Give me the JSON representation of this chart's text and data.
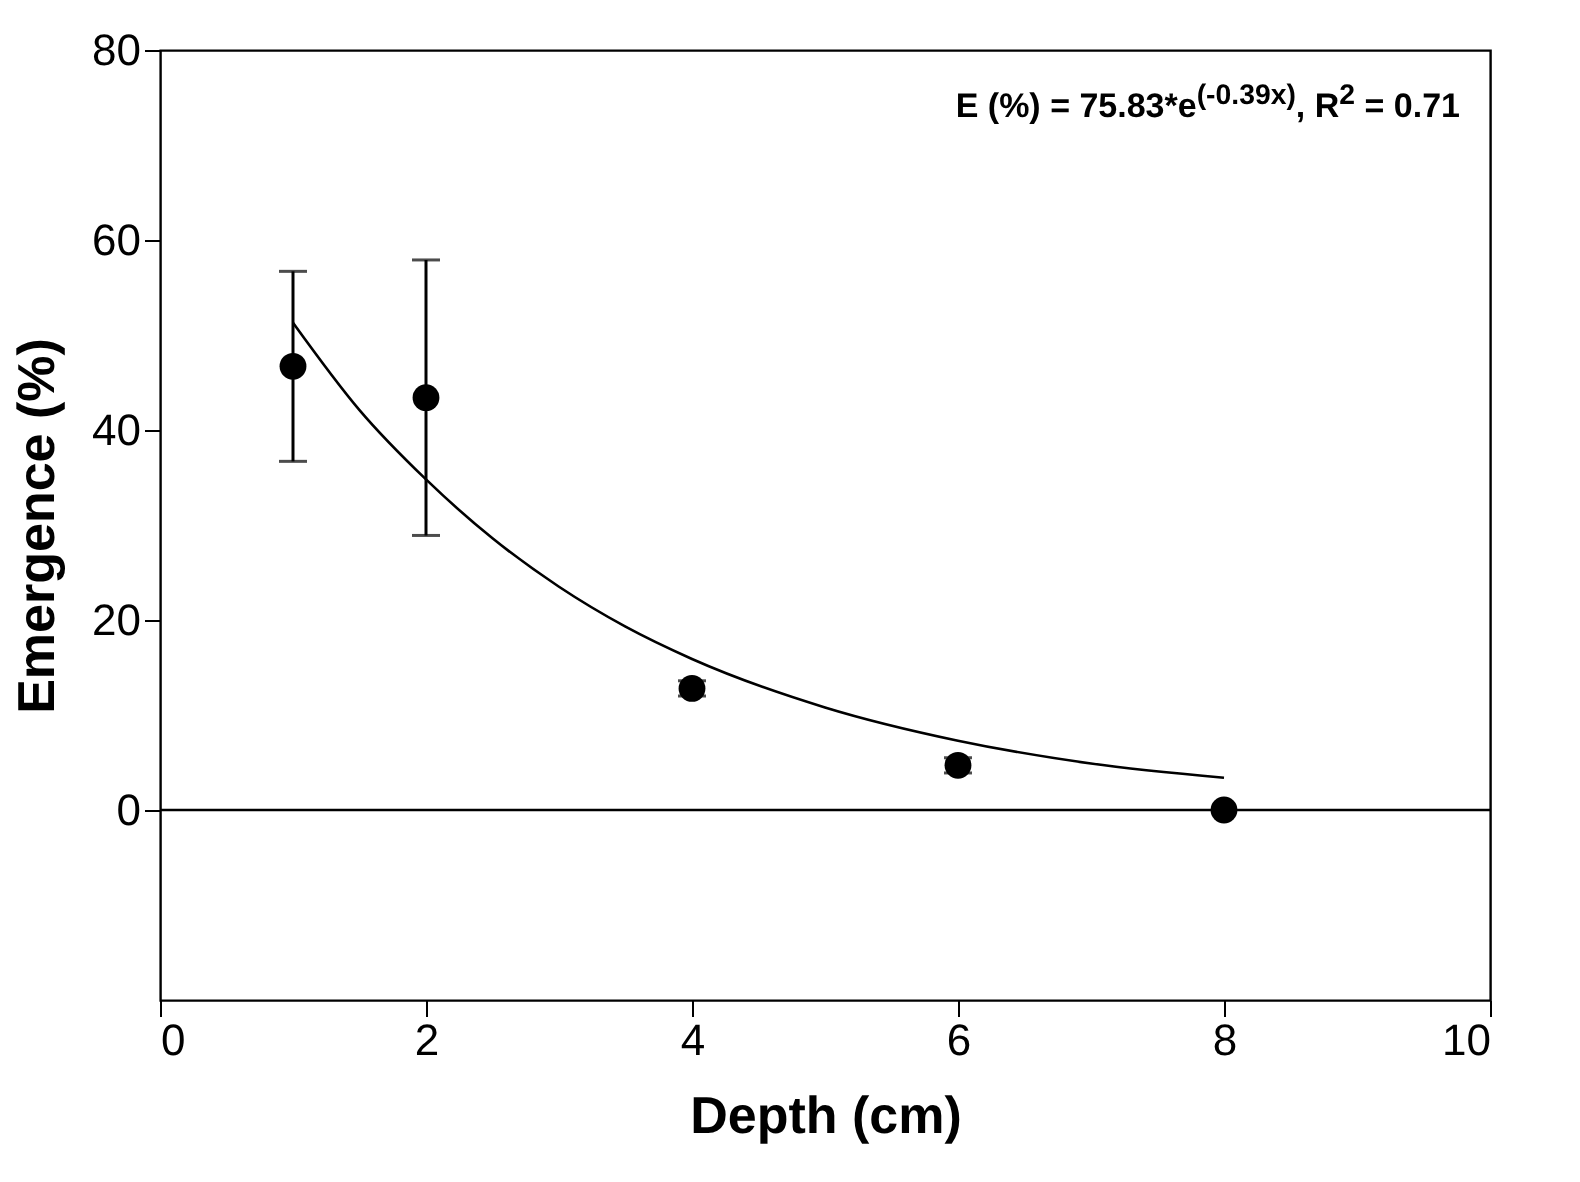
{
  "chart_data": {
    "type": "scatter",
    "xlabel": "Depth (cm)",
    "ylabel": "Emergence (%)",
    "annotations": [
      "E (%) = 75.83*e$^{(-0.39x)}$, R$^{2}$ = 0.71"
    ],
    "xlim": [
      0,
      10
    ],
    "xticks": [
      0,
      2,
      4,
      6,
      8,
      10
    ],
    "ylim": [
      -20,
      80
    ],
    "yticks": [
      0,
      20,
      40,
      60,
      80
    ],
    "grid": false,
    "ref_lines": [
      {
        "axis": "y",
        "value": 0,
        "color": "#000000"
      }
    ],
    "series": [
      {
        "color": "#000000",
        "marker": "circle",
        "x": [
          1,
          2,
          4,
          6,
          8
        ],
        "values": [
          46.7,
          43.4,
          12.8,
          4.7,
          0
        ],
        "errors": [
          10,
          14.5,
          0.8,
          0.8,
          null
        ]
      },
      {
        "type": "line",
        "color": "#000000",
        "line_style": "solid",
        "x": [
          1,
          1.5,
          2,
          2.5,
          3,
          3.5,
          4,
          5,
          6,
          7,
          8
        ],
        "values": [
          51.3,
          42.1,
          34.8,
          28.6,
          23.5,
          19.3,
          15.9,
          10.8,
          7.3,
          4.9,
          3.4
        ]
      }
    ]
  }
}
